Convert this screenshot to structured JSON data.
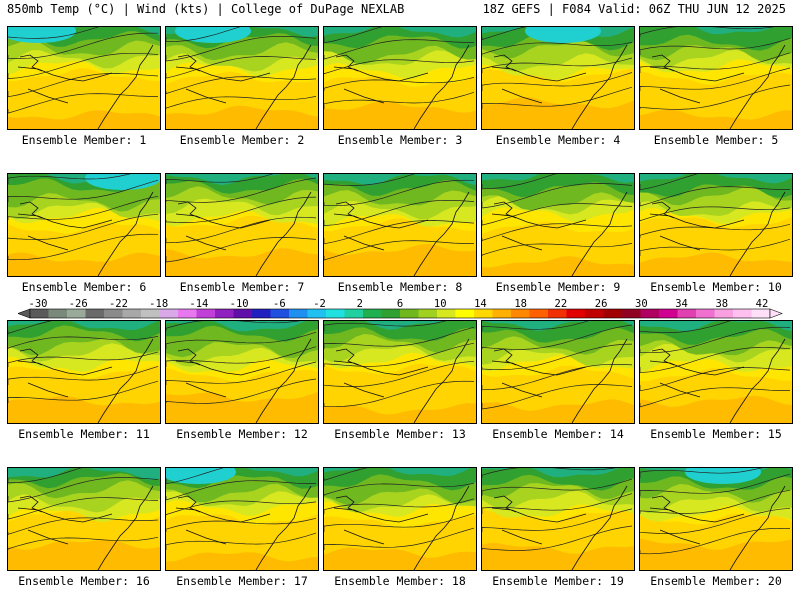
{
  "header": {
    "title_left": "850mb Temp (°C) | Wind (kts) | College of DuPage NEXLAB",
    "title_right": "18Z GEFS | F084 Valid: 06Z THU JUN 12 2025"
  },
  "member_label_prefix": "Ensemble Member: ",
  "members": [
    {
      "id": 1,
      "label": "Ensemble Member: 1"
    },
    {
      "id": 2,
      "label": "Ensemble Member: 2"
    },
    {
      "id": 3,
      "label": "Ensemble Member: 3"
    },
    {
      "id": 4,
      "label": "Ensemble Member: 4"
    },
    {
      "id": 5,
      "label": "Ensemble Member: 5"
    },
    {
      "id": 6,
      "label": "Ensemble Member: 6"
    },
    {
      "id": 7,
      "label": "Ensemble Member: 7"
    },
    {
      "id": 8,
      "label": "Ensemble Member: 8"
    },
    {
      "id": 9,
      "label": "Ensemble Member: 9"
    },
    {
      "id": 10,
      "label": "Ensemble Member: 10"
    },
    {
      "id": 11,
      "label": "Ensemble Member: 11"
    },
    {
      "id": 12,
      "label": "Ensemble Member: 12"
    },
    {
      "id": 13,
      "label": "Ensemble Member: 13"
    },
    {
      "id": 14,
      "label": "Ensemble Member: 14"
    },
    {
      "id": 15,
      "label": "Ensemble Member: 15"
    },
    {
      "id": 16,
      "label": "Ensemble Member: 16"
    },
    {
      "id": 17,
      "label": "Ensemble Member: 17"
    },
    {
      "id": 18,
      "label": "Ensemble Member: 18"
    },
    {
      "id": 19,
      "label": "Ensemble Member: 19"
    },
    {
      "id": 20,
      "label": "Ensemble Member: 20"
    }
  ],
  "colorbar": {
    "tick_labels": [
      "-30",
      "-26",
      "-22",
      "-18",
      "-14",
      "-10",
      "-6",
      "-2",
      "2",
      "6",
      "10",
      "14",
      "18",
      "22",
      "26",
      "30",
      "34",
      "38",
      "42"
    ],
    "colors": [
      "#5a5a5a",
      "#7a8a7a",
      "#9aaa9a",
      "#6a6a6a",
      "#8a8a8a",
      "#a8a8a8",
      "#c0c0c0",
      "#d8a8e8",
      "#e878f0",
      "#c040d8",
      "#9020c0",
      "#6010a8",
      "#2020c0",
      "#2050e0",
      "#2090f0",
      "#20c0f0",
      "#20e0e0",
      "#20d0a0",
      "#20b050",
      "#30a030",
      "#70b820",
      "#a0d020",
      "#d8e820",
      "#ffff00",
      "#ffd800",
      "#ffb000",
      "#ff8800",
      "#ff6000",
      "#f03000",
      "#e00000",
      "#c00000",
      "#a00000",
      "#900020",
      "#b00060",
      "#d00090",
      "#e040b0",
      "#f070d0",
      "#f8a0e0",
      "#ffc0f0",
      "#ffe0f8"
    ]
  }
}
